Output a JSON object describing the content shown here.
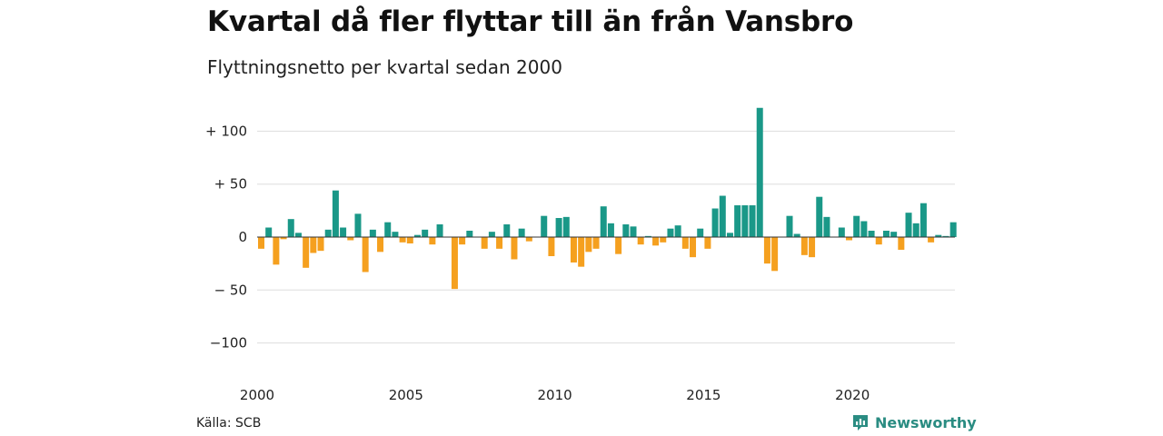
{
  "title": "Kvartal då fler flyttar till än från Vansbro",
  "subtitle": "Flyttningsnetto per kvartal sedan 2000",
  "source": "Källa: SCB",
  "brand": {
    "name": "Newsworthy",
    "icon": "newsworthy-logo-icon",
    "color": "#2a8c82"
  },
  "colors": {
    "positive": "#1a9888",
    "negative": "#f5a01f",
    "grid": "#dddddd"
  },
  "chart_data": {
    "type": "bar",
    "title": "Kvartal då fler flyttar till än från Vansbro",
    "subtitle": "Flyttningsnetto per kvartal sedan 2000",
    "xlabel": "",
    "ylabel": "",
    "ylim": [
      -115,
      130
    ],
    "yticks": [
      {
        "value": 100,
        "label": "+ 100"
      },
      {
        "value": 50,
        "label": "+  50"
      },
      {
        "value": 0,
        "label": "0"
      },
      {
        "value": -50,
        "label": "− 50"
      },
      {
        "value": -100,
        "label": "−100"
      }
    ],
    "xticks": [
      "2000",
      "2005",
      "2010",
      "2015",
      "2020"
    ],
    "start_year": 2000,
    "grid": true,
    "values": [
      -11,
      9,
      -26,
      -2,
      17,
      4,
      -29,
      -15,
      -13,
      7,
      44,
      9,
      -3,
      22,
      -33,
      7,
      -14,
      14,
      5,
      -5,
      -6,
      2,
      7,
      -7,
      12,
      0,
      -49,
      -7,
      6,
      0,
      -11,
      5,
      -11,
      12,
      -21,
      8,
      -4,
      0,
      20,
      -18,
      18,
      19,
      -24,
      -28,
      -14,
      -11,
      29,
      13,
      -16,
      12,
      10,
      -7,
      1,
      -8,
      -5,
      8,
      11,
      -11,
      -19,
      8,
      -11,
      27,
      39,
      4,
      30,
      30,
      30,
      122,
      -25,
      -32,
      0,
      20,
      3,
      -17,
      -19,
      38,
      19,
      0,
      9,
      -3,
      20,
      15,
      6,
      -7,
      6,
      5,
      -12,
      23,
      13,
      32,
      -5,
      2,
      1,
      14
    ]
  }
}
